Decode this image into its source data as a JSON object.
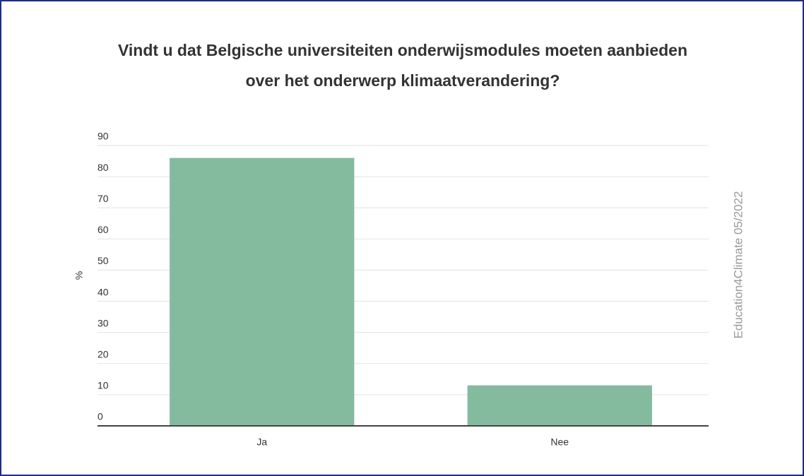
{
  "chart_data": {
    "type": "bar",
    "title": "Vindt u dat Belgische universiteiten onderwijsmodules moeten aanbieden over het onderwerp klimaatverandering?",
    "y_label": "%",
    "annotation": "Education4Climate 05/2022",
    "categories": [
      "Ja",
      "Nee"
    ],
    "values": [
      86,
      13
    ],
    "color": "#84bb9f",
    "ylim": [
      0,
      90
    ],
    "yticks": [
      0,
      10,
      20,
      30,
      40,
      50,
      60,
      70,
      80,
      90
    ],
    "grid": true
  }
}
